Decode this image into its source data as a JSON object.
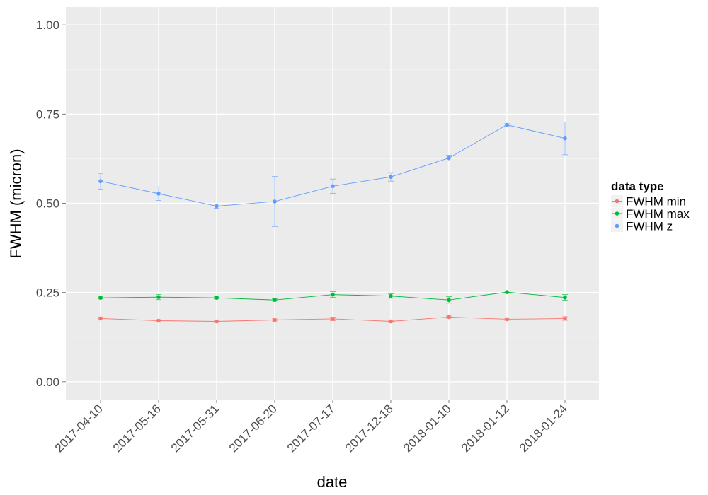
{
  "chart_data": {
    "type": "line",
    "xlabel": "date",
    "ylabel": "FWHM (micron)",
    "categories": [
      "2017-04-10",
      "2017-05-16",
      "2017-05-31",
      "2017-06-20",
      "2017-07-17",
      "2017-12-18",
      "2018-01-10",
      "2018-01-12",
      "2018-01-24"
    ],
    "ylim": [
      -0.05,
      1.05
    ],
    "yticks": [
      0.0,
      0.25,
      0.5,
      0.75,
      1.0
    ],
    "ytick_labels": [
      "0.00",
      "0.25",
      "0.50",
      "0.75",
      "1.00"
    ],
    "grid": true,
    "legend": {
      "title": "data type",
      "position": "right"
    },
    "series": [
      {
        "name": "FWHM min",
        "color": "#f8766d",
        "values": [
          0.177,
          0.171,
          0.169,
          0.173,
          0.176,
          0.169,
          0.181,
          0.175,
          0.177
        ],
        "error_low": [
          0.173,
          0.168,
          0.166,
          0.17,
          0.171,
          0.166,
          0.178,
          0.172,
          0.172
        ],
        "error_high": [
          0.181,
          0.174,
          0.172,
          0.176,
          0.181,
          0.172,
          0.184,
          0.178,
          0.182
        ]
      },
      {
        "name": "FWHM max",
        "color": "#00ba38",
        "values": [
          0.235,
          0.237,
          0.235,
          0.229,
          0.244,
          0.24,
          0.229,
          0.251,
          0.236
        ],
        "error_low": [
          0.232,
          0.23,
          0.232,
          0.226,
          0.236,
          0.234,
          0.22,
          0.248,
          0.228
        ],
        "error_high": [
          0.238,
          0.244,
          0.238,
          0.232,
          0.252,
          0.246,
          0.238,
          0.254,
          0.244
        ]
      },
      {
        "name": "FWHM z",
        "color": "#619cff",
        "values": [
          0.562,
          0.527,
          0.492,
          0.505,
          0.548,
          0.574,
          0.627,
          0.72,
          0.682
        ],
        "error_low": [
          0.54,
          0.508,
          0.486,
          0.435,
          0.528,
          0.562,
          0.619,
          0.717,
          0.636
        ],
        "error_high": [
          0.584,
          0.546,
          0.498,
          0.575,
          0.568,
          0.586,
          0.635,
          0.723,
          0.728
        ]
      }
    ]
  }
}
